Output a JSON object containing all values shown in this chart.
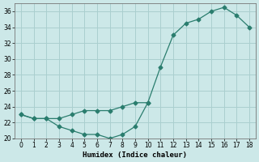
{
  "xlabel": "Humidex (Indice chaleur)",
  "ylabel": "",
  "x_upper": [
    0,
    1,
    2,
    3,
    4,
    5,
    6,
    7,
    8,
    9,
    10,
    11,
    12,
    13,
    14,
    15,
    16,
    17,
    18
  ],
  "y_upper": [
    23,
    22.5,
    22.5,
    22.5,
    23,
    23.5,
    23.5,
    23.5,
    24,
    24.5,
    24.5,
    29,
    33,
    34.5,
    35,
    36,
    36.5,
    35.5,
    34
  ],
  "x_lower": [
    0,
    1,
    2,
    3,
    4,
    5,
    6,
    7,
    8,
    9,
    10
  ],
  "y_lower": [
    23,
    22.5,
    22.5,
    21.5,
    21,
    20.5,
    20.5,
    20,
    20.5,
    21.5,
    24.5
  ],
  "line_color": "#2a7d6e",
  "marker": "D",
  "bg_color": "#cce8e8",
  "grid_color": "#aacfcf",
  "ylim": [
    20,
    37
  ],
  "xlim": [
    -0.5,
    18.5
  ],
  "yticks": [
    20,
    22,
    24,
    26,
    28,
    30,
    32,
    34,
    36
  ],
  "xticks": [
    0,
    1,
    2,
    3,
    4,
    5,
    6,
    7,
    8,
    9,
    10,
    11,
    12,
    13,
    14,
    15,
    16,
    17,
    18
  ]
}
